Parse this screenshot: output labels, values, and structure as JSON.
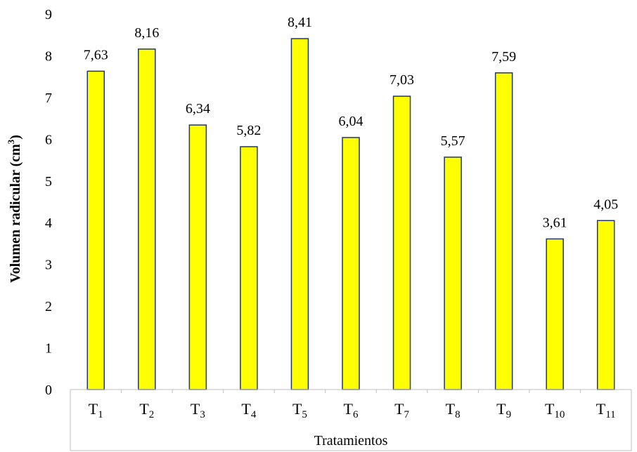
{
  "chart_data": {
    "type": "bar",
    "categories": [
      {
        "base": "T",
        "sub": "1"
      },
      {
        "base": "T",
        "sub": "2"
      },
      {
        "base": "T",
        "sub": "3"
      },
      {
        "base": "T",
        "sub": "4"
      },
      {
        "base": "T",
        "sub": "5"
      },
      {
        "base": "T",
        "sub": "6"
      },
      {
        "base": "T",
        "sub": "7"
      },
      {
        "base": "T",
        "sub": "8"
      },
      {
        "base": "T",
        "sub": "9"
      },
      {
        "base": "T",
        "sub": "10"
      },
      {
        "base": "T",
        "sub": "11"
      }
    ],
    "values": [
      7.63,
      8.16,
      6.34,
      5.82,
      8.41,
      6.04,
      7.03,
      5.57,
      7.59,
      3.61,
      4.05
    ],
    "data_labels": [
      "7,63",
      "8,16",
      "6,34",
      "5,82",
      "8,41",
      "6,04",
      "7,03",
      "5,57",
      "7,59",
      "3,61",
      "4,05"
    ],
    "xlabel": "Tratamientos",
    "ylabel": {
      "text": "Volumen radicular (cm",
      "sup": "3",
      "close": ")"
    },
    "ylim": [
      0,
      9
    ],
    "yticks": [
      "0",
      "1",
      "2",
      "3",
      "4",
      "5",
      "6",
      "7",
      "8",
      "9"
    ],
    "grid": false,
    "colors": {
      "bar_fill": "#ffff00",
      "bar_stroke": "#1f3864",
      "axis": "#bfbfbf"
    }
  }
}
